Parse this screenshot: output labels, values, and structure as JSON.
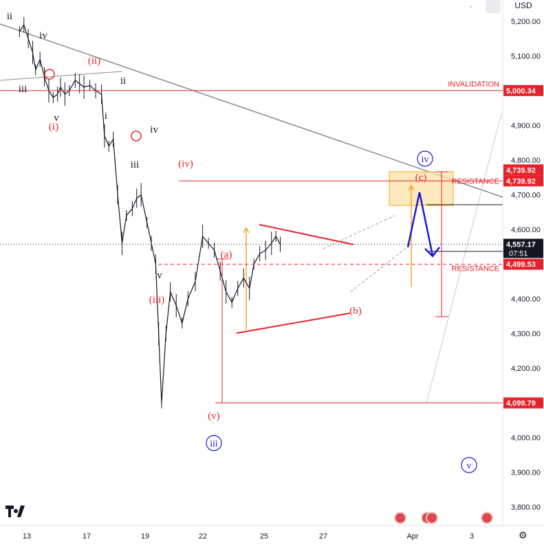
{
  "header": {
    "currency": "USD"
  },
  "chart_data": {
    "type": "line",
    "y_ticks": [
      "5,200.00",
      "5,100.00",
      "4,900.00",
      "4,800.00",
      "4,700.00",
      "4,600.00",
      "4,400.00",
      "4,300.00",
      "4,200.00",
      "4,000.00",
      "3,900.00",
      "3,800.00"
    ],
    "x_ticks": [
      "13",
      "17",
      "19",
      "22",
      "25",
      "27",
      "Apr",
      "3"
    ],
    "ylim": [
      3750,
      5250
    ],
    "price_path": [
      [
        12.5,
        5170
      ],
      [
        12.8,
        5190
      ],
      [
        13.1,
        5150
      ],
      [
        13.4,
        5110
      ],
      [
        13.6,
        5060
      ],
      [
        13.9,
        5090
      ],
      [
        14.2,
        5040
      ],
      [
        14.5,
        5000
      ],
      [
        14.8,
        4980
      ],
      [
        15.1,
        4990
      ],
      [
        15.3,
        5010
      ],
      [
        15.6,
        4990
      ],
      [
        15.9,
        5000
      ],
      [
        16.3,
        5030
      ],
      [
        16.6,
        5020
      ],
      [
        16.9,
        5010
      ],
      [
        17.3,
        5015
      ],
      [
        17.7,
        5000
      ],
      [
        18.1,
        4990
      ],
      [
        18.3,
        4870
      ],
      [
        18.6,
        4840
      ],
      [
        18.9,
        4860
      ],
      [
        19.2,
        4700
      ],
      [
        19.5,
        4560
      ],
      [
        19.8,
        4640
      ],
      [
        20.2,
        4660
      ],
      [
        20.5,
        4690
      ],
      [
        20.8,
        4700
      ],
      [
        21.2,
        4620
      ],
      [
        21.5,
        4560
      ],
      [
        21.8,
        4500
      ],
      [
        22.0,
        4300
      ],
      [
        22.2,
        4100
      ],
      [
        22.5,
        4300
      ],
      [
        22.8,
        4420
      ],
      [
        23.2,
        4380
      ],
      [
        23.6,
        4330
      ],
      [
        24.0,
        4400
      ],
      [
        24.5,
        4450
      ],
      [
        25.0,
        4580
      ],
      [
        25.4,
        4560
      ],
      [
        25.8,
        4540
      ],
      [
        26.2,
        4480
      ],
      [
        26.6,
        4420
      ],
      [
        27.0,
        4390
      ],
      [
        27.4,
        4430
      ],
      [
        27.8,
        4460
      ],
      [
        28.2,
        4430
      ],
      [
        28.5,
        4500
      ],
      [
        28.9,
        4530
      ],
      [
        29.3,
        4540
      ],
      [
        29.7,
        4560
      ],
      [
        30.0,
        4580
      ],
      [
        30.3,
        4557
      ]
    ],
    "levels": [
      {
        "value": 5000.34,
        "tag": "5,000.34",
        "label": "INVALIDATION",
        "style": "solid",
        "tag_color": "#e8222a"
      },
      {
        "value": 4739.92,
        "tag": "4,739.92",
        "label": "RESISTANCE",
        "style": "solid",
        "tag_color": "#e8222a"
      },
      {
        "value": 4739.92,
        "tag": "4,739.92",
        "label": "",
        "style": "none",
        "tag_color": "#e8222a"
      },
      {
        "value": 4557.17,
        "tag": "4,557.17",
        "sub": "07:51",
        "label": "",
        "style": "dotted",
        "tag_color": "#131722"
      },
      {
        "value": 4499.53,
        "tag": "4,499.53",
        "label": "RESISTANCE",
        "style": "dashed",
        "tag_color": "#e8222a"
      },
      {
        "value": 4099.79,
        "tag": "4,099.79",
        "label": "",
        "style": "solid",
        "tag_color": "#e8222a"
      }
    ],
    "wave_labels": [
      {
        "text": "ii",
        "color": "#131722",
        "circled": false
      },
      {
        "text": "iv",
        "color": "#131722",
        "circled": false
      },
      {
        "text": "(ii)",
        "color": "#e8222a",
        "circled": false
      },
      {
        "text": "ii",
        "color": "#131722",
        "circled": false
      },
      {
        "text": "iii",
        "color": "#131722",
        "circled": false
      },
      {
        "text": "v",
        "color": "#131722",
        "circled": false
      },
      {
        "text": "(i)",
        "color": "#e8222a",
        "circled": false
      },
      {
        "text": "i",
        "color": "#131722",
        "circled": false
      },
      {
        "text": "iv",
        "color": "#131722",
        "circled": false
      },
      {
        "text": "iii",
        "color": "#131722",
        "circled": false
      },
      {
        "text": "(iv)",
        "color": "#e8222a",
        "circled": false
      },
      {
        "text": "v",
        "color": "#131722",
        "circled": false
      },
      {
        "text": "(iii)",
        "color": "#e8222a",
        "circled": false
      },
      {
        "text": "(a)",
        "color": "#e8222a",
        "circled": false
      },
      {
        "text": "(v)",
        "color": "#e8222a",
        "circled": false
      },
      {
        "text": "iii",
        "color": "#1a1ad6",
        "circled": true
      },
      {
        "text": "(b)",
        "color": "#e8222a",
        "circled": false
      },
      {
        "text": "(c)",
        "color": "#e8222a",
        "circled": false
      },
      {
        "text": "iv",
        "color": "#1a1ad6",
        "circled": true
      },
      {
        "text": "v",
        "color": "#1a1ad6",
        "circled": true
      }
    ]
  },
  "colors": {
    "accent_red": "#e8222a",
    "wave_blue": "#1a1ad6",
    "zone_orange": "#f5a623",
    "trend_gray": "#8a8a8a"
  }
}
